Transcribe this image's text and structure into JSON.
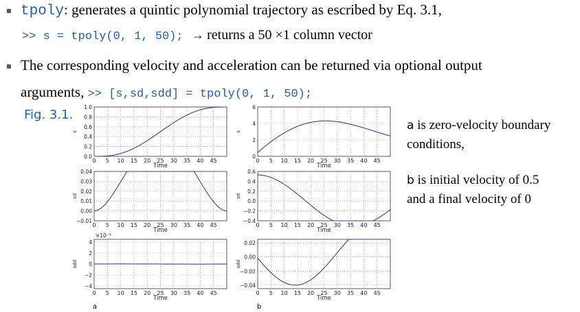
{
  "bullets": [
    {
      "code": "tpoly",
      "text": ": generates a quintic polynomial trajectory as escribed by Eq. 3.1,"
    },
    {
      "text": "The corresponding velocity and acceleration can be returned via optional output"
    }
  ],
  "example_line": {
    "code": ">> s = tpoly(0, 1, 50);",
    "arrow": "→",
    "text": "returns a 50 ×1 column vector"
  },
  "arguments_line": {
    "text": "arguments,",
    "code": ">> [s,sd,sdd] = tpoly(0, 1, 50);"
  },
  "figure": {
    "label": "Fig. 3.1.",
    "column_labels": [
      "a",
      "b"
    ],
    "x_ticks": [
      "0",
      "5",
      "10",
      "15",
      "20",
      "25",
      "30",
      "35",
      "40",
      "45"
    ],
    "x_label": "Time",
    "panels": [
      {
        "col": "a",
        "row": 0,
        "ylabel": "s",
        "yticks": [
          "0.0",
          "0.2",
          "0.4",
          "0.6",
          "0.8",
          "1.0"
        ],
        "exp": ""
      },
      {
        "col": "b",
        "row": 0,
        "ylabel": "s",
        "yticks": [
          "0",
          "2",
          "4",
          "6"
        ],
        "exp": ""
      },
      {
        "col": "a",
        "row": 1,
        "ylabel": "sd",
        "yticks": [
          "−0.01",
          "0.00",
          "0.01",
          "0.02",
          "0.03",
          "0.04"
        ],
        "exp": ""
      },
      {
        "col": "b",
        "row": 1,
        "ylabel": "sd",
        "yticks": [
          "−0.4",
          "−0.2",
          "0.0",
          "0.2",
          "0.4",
          "0.6"
        ],
        "exp": ""
      },
      {
        "col": "a",
        "row": 2,
        "ylabel": "sdd",
        "yticks": [
          "−4",
          "−2",
          "0",
          "2",
          "4"
        ],
        "exp": "×10⁻³"
      },
      {
        "col": "b",
        "row": 2,
        "ylabel": "sdd",
        "yticks": [
          "−0.04",
          "−0.02",
          "0.00",
          "0.02"
        ],
        "exp": ""
      }
    ]
  },
  "notes": {
    "a_prefix": "a",
    "a_text_line1": "is zero-velocity boundary",
    "a_text_line2": "conditions,",
    "b_prefix": "b",
    "b_text_line1": "is initial velocity of 0.5",
    "b_text_line2": "and a final velocity of 0"
  },
  "colors": {
    "code_blue": "#1f5fb0",
    "curve": "#3b3d8f",
    "grid": "#999999"
  }
}
